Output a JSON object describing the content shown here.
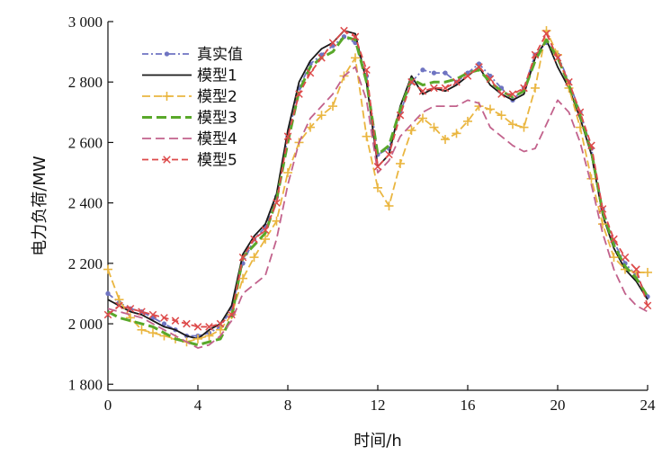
{
  "chart_data": {
    "type": "line",
    "title": "",
    "xlabel": "时间/h",
    "ylabel": "电力负荷/MW",
    "xlim": [
      0,
      24
    ],
    "ylim": [
      1780,
      3000
    ],
    "xticks": [
      0,
      4,
      8,
      12,
      16,
      20,
      24
    ],
    "yticks": [
      1800,
      2000,
      2200,
      2400,
      2600,
      2800,
      3000
    ],
    "ytick_labels": [
      "1 800",
      "2 000",
      "2 200",
      "2 400",
      "2 600",
      "2 800",
      "3 000"
    ],
    "grid": false,
    "legend_position": "top-left",
    "x": [
      0,
      0.5,
      1,
      1.5,
      2,
      2.5,
      3,
      3.5,
      4,
      4.5,
      5,
      5.5,
      6,
      6.5,
      7,
      7.5,
      8,
      8.5,
      9,
      9.5,
      10,
      10.5,
      11,
      11.5,
      12,
      12.5,
      13,
      13.5,
      14,
      14.5,
      15,
      15.5,
      16,
      16.5,
      17,
      17.5,
      18,
      18.5,
      19,
      19.5,
      20,
      20.5,
      21,
      21.5,
      22,
      22.5,
      23,
      23.5,
      24
    ],
    "series": [
      {
        "name": "真实值",
        "color": "#6f74c2",
        "dash": "7,3,2,3",
        "marker": "dot",
        "values": [
          2100,
          2070,
          2050,
          2040,
          2020,
          2000,
          1980,
          1960,
          1960,
          1970,
          1990,
          2050,
          2200,
          2280,
          2320,
          2420,
          2620,
          2780,
          2860,
          2890,
          2920,
          2950,
          2930,
          2820,
          2560,
          2580,
          2700,
          2800,
          2840,
          2830,
          2830,
          2800,
          2830,
          2860,
          2820,
          2780,
          2740,
          2780,
          2890,
          2930,
          2890,
          2800,
          2700,
          2580,
          2380,
          2270,
          2200,
          2160,
          2090
        ]
      },
      {
        "name": "模型1",
        "color": "#1a1a1a",
        "dash": "",
        "marker": "none",
        "values": [
          2080,
          2060,
          2040,
          2030,
          2010,
          1990,
          1980,
          1960,
          1950,
          1980,
          2000,
          2060,
          2230,
          2290,
          2330,
          2430,
          2640,
          2800,
          2870,
          2910,
          2930,
          2970,
          2960,
          2800,
          2520,
          2560,
          2720,
          2820,
          2760,
          2780,
          2770,
          2790,
          2820,
          2850,
          2790,
          2760,
          2740,
          2760,
          2880,
          2940,
          2850,
          2780,
          2680,
          2560,
          2360,
          2250,
          2180,
          2140,
          2080
        ]
      },
      {
        "name": "模型2",
        "color": "#eab640",
        "dash": "9,4",
        "marker": "plus",
        "values": [
          2180,
          2080,
          2020,
          1980,
          1970,
          1960,
          1950,
          1940,
          1950,
          1960,
          1980,
          2030,
          2150,
          2220,
          2280,
          2340,
          2500,
          2600,
          2650,
          2690,
          2720,
          2820,
          2880,
          2620,
          2450,
          2390,
          2530,
          2640,
          2680,
          2650,
          2610,
          2630,
          2670,
          2720,
          2710,
          2690,
          2660,
          2650,
          2780,
          2970,
          2890,
          2780,
          2650,
          2480,
          2330,
          2220,
          2180,
          2170,
          2170
        ]
      },
      {
        "name": "模型3",
        "color": "#59a82a",
        "dash": "11,5",
        "marker": "none",
        "values": [
          2040,
          2020,
          2010,
          2000,
          1990,
          1970,
          1950,
          1940,
          1930,
          1940,
          1950,
          2020,
          2220,
          2260,
          2300,
          2410,
          2600,
          2770,
          2850,
          2880,
          2900,
          2950,
          2940,
          2800,
          2560,
          2590,
          2710,
          2810,
          2790,
          2800,
          2800,
          2810,
          2830,
          2840,
          2800,
          2770,
          2750,
          2770,
          2870,
          2940,
          2880,
          2790,
          2690,
          2570,
          2370,
          2260,
          2190,
          2150,
          2090
        ]
      },
      {
        "name": "模型4",
        "color": "#c2628c",
        "dash": "10,5",
        "marker": "none",
        "values": [
          2050,
          2040,
          2030,
          2020,
          2000,
          1980,
          1960,
          1940,
          1920,
          1930,
          1960,
          2010,
          2100,
          2130,
          2160,
          2280,
          2460,
          2600,
          2680,
          2720,
          2760,
          2820,
          2850,
          2740,
          2500,
          2540,
          2620,
          2660,
          2700,
          2720,
          2720,
          2720,
          2740,
          2730,
          2650,
          2620,
          2590,
          2570,
          2580,
          2660,
          2740,
          2700,
          2600,
          2460,
          2300,
          2180,
          2100,
          2060,
          2040
        ]
      },
      {
        "name": "模型5",
        "color": "#dd4a4a",
        "dash": "7,4",
        "marker": "x",
        "values": [
          2030,
          2060,
          2050,
          2040,
          2030,
          2020,
          2010,
          2000,
          1990,
          1990,
          2000,
          2030,
          2220,
          2280,
          2310,
          2400,
          2620,
          2760,
          2830,
          2880,
          2930,
          2970,
          2950,
          2840,
          2520,
          2560,
          2690,
          2800,
          2770,
          2780,
          2780,
          2800,
          2820,
          2850,
          2810,
          2760,
          2760,
          2780,
          2890,
          2960,
          2880,
          2800,
          2700,
          2590,
          2380,
          2280,
          2220,
          2180,
          2060
        ]
      }
    ]
  }
}
